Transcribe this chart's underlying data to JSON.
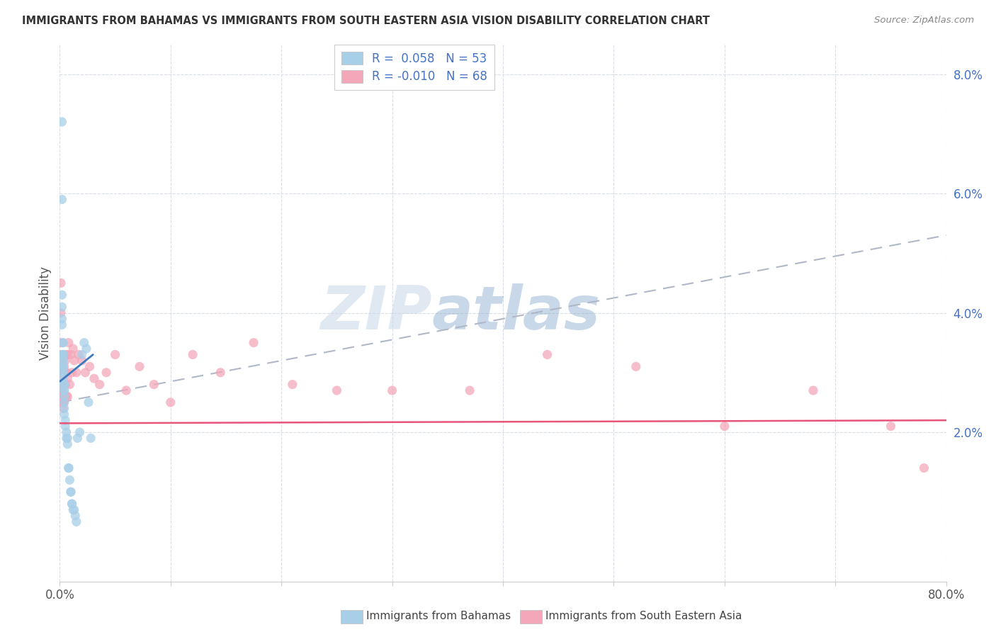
{
  "title": "IMMIGRANTS FROM BAHAMAS VS IMMIGRANTS FROM SOUTH EASTERN ASIA VISION DISABILITY CORRELATION CHART",
  "source": "Source: ZipAtlas.com",
  "ylabel": "Vision Disability",
  "xlim": [
    0.0,
    0.8
  ],
  "ylim": [
    -0.005,
    0.085
  ],
  "yticks": [
    0.02,
    0.04,
    0.06,
    0.08
  ],
  "ytick_labels": [
    "2.0%",
    "4.0%",
    "6.0%",
    "8.0%"
  ],
  "legend1_label": "R =  0.058   N = 53",
  "legend2_label": "R = -0.010   N = 68",
  "color_blue": "#a8cfe8",
  "color_pink": "#f4a7b9",
  "trend_blue_color": "#3a7bbf",
  "trend_pink_color": "#e8547a",
  "trend_dash_color": "#b0b8c8",
  "watermark_zip": "ZIP",
  "watermark_atlas": "atlas",
  "background_color": "#ffffff",
  "grid_color": "#d8dde8",
  "bahamas_x": [
    0.002,
    0.002,
    0.002,
    0.002,
    0.002,
    0.002,
    0.003,
    0.003,
    0.003,
    0.003,
    0.003,
    0.003,
    0.003,
    0.003,
    0.003,
    0.003,
    0.003,
    0.003,
    0.003,
    0.003,
    0.003,
    0.004,
    0.004,
    0.004,
    0.004,
    0.004,
    0.004,
    0.004,
    0.004,
    0.005,
    0.005,
    0.006,
    0.006,
    0.007,
    0.007,
    0.008,
    0.008,
    0.009,
    0.01,
    0.01,
    0.011,
    0.011,
    0.012,
    0.013,
    0.014,
    0.015,
    0.016,
    0.018,
    0.02,
    0.022,
    0.024,
    0.026,
    0.028
  ],
  "bahamas_y": [
    0.072,
    0.059,
    0.043,
    0.041,
    0.039,
    0.038,
    0.035,
    0.035,
    0.033,
    0.033,
    0.033,
    0.033,
    0.032,
    0.032,
    0.031,
    0.031,
    0.031,
    0.03,
    0.03,
    0.029,
    0.028,
    0.028,
    0.028,
    0.027,
    0.027,
    0.026,
    0.025,
    0.024,
    0.023,
    0.022,
    0.021,
    0.02,
    0.019,
    0.019,
    0.018,
    0.014,
    0.014,
    0.012,
    0.01,
    0.01,
    0.008,
    0.008,
    0.007,
    0.007,
    0.006,
    0.005,
    0.019,
    0.02,
    0.033,
    0.035,
    0.034,
    0.025,
    0.019
  ],
  "sea_x": [
    0.001,
    0.001,
    0.001,
    0.001,
    0.001,
    0.001,
    0.001,
    0.001,
    0.001,
    0.001,
    0.001,
    0.001,
    0.001,
    0.001,
    0.001,
    0.002,
    0.002,
    0.002,
    0.002,
    0.003,
    0.003,
    0.003,
    0.003,
    0.004,
    0.004,
    0.004,
    0.005,
    0.005,
    0.005,
    0.005,
    0.006,
    0.006,
    0.006,
    0.007,
    0.007,
    0.007,
    0.008,
    0.009,
    0.01,
    0.011,
    0.012,
    0.013,
    0.015,
    0.017,
    0.02,
    0.023,
    0.027,
    0.031,
    0.036,
    0.042,
    0.05,
    0.06,
    0.072,
    0.085,
    0.1,
    0.12,
    0.145,
    0.175,
    0.21,
    0.25,
    0.3,
    0.37,
    0.44,
    0.52,
    0.6,
    0.68,
    0.75,
    0.78
  ],
  "sea_y": [
    0.045,
    0.04,
    0.035,
    0.033,
    0.032,
    0.03,
    0.03,
    0.029,
    0.028,
    0.028,
    0.027,
    0.027,
    0.026,
    0.025,
    0.025,
    0.028,
    0.027,
    0.026,
    0.025,
    0.03,
    0.028,
    0.025,
    0.024,
    0.031,
    0.028,
    0.025,
    0.032,
    0.03,
    0.028,
    0.026,
    0.033,
    0.03,
    0.026,
    0.033,
    0.029,
    0.026,
    0.035,
    0.028,
    0.033,
    0.03,
    0.034,
    0.032,
    0.03,
    0.033,
    0.032,
    0.03,
    0.031,
    0.029,
    0.028,
    0.03,
    0.033,
    0.027,
    0.031,
    0.028,
    0.025,
    0.033,
    0.03,
    0.035,
    0.028,
    0.027,
    0.027,
    0.027,
    0.033,
    0.031,
    0.021,
    0.027,
    0.021,
    0.014
  ]
}
